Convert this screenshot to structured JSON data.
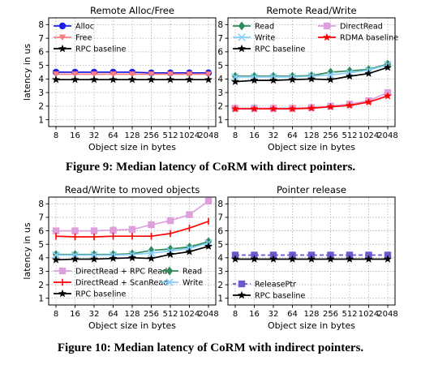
{
  "figures": [
    {
      "caption": "Figure 9: Median latency of CoRM with direct pointers."
    },
    {
      "caption": "Figure 10: Median latency of CoRM with indirect pointers."
    }
  ],
  "chart_data": [
    {
      "type": "line",
      "title": "Remote Alloc/Free",
      "xlabel": "Object size in bytes",
      "ylabel": "latency in us",
      "x": [
        "8",
        "16",
        "32",
        "64",
        "128",
        "256",
        "512",
        "1024",
        "2048"
      ],
      "ylim": [
        0.5,
        8.5
      ],
      "yticks": [
        1,
        2,
        3,
        4,
        5,
        6,
        7,
        8
      ],
      "grid": true,
      "legend": "top-left",
      "series": [
        {
          "name": "Alloc",
          "color": "#1f1fe8",
          "marker": "circle",
          "values": [
            4.5,
            4.5,
            4.5,
            4.5,
            4.5,
            4.45,
            4.45,
            4.45,
            4.45
          ]
        },
        {
          "name": "Free",
          "color": "#ff7f7f",
          "marker": "triangle-down",
          "values": [
            4.35,
            4.35,
            4.35,
            4.35,
            4.35,
            4.35,
            4.35,
            4.35,
            4.35
          ]
        },
        {
          "name": "RPC baseline",
          "color": "#000000",
          "marker": "star",
          "values": [
            3.95,
            3.95,
            3.95,
            3.95,
            3.95,
            3.95,
            3.95,
            3.95,
            3.95
          ]
        }
      ]
    },
    {
      "type": "line",
      "title": "Remote Read/Write",
      "xlabel": "Object size in bytes",
      "ylabel": "",
      "x": [
        "8",
        "16",
        "32",
        "64",
        "128",
        "256",
        "512",
        "1024",
        "2048"
      ],
      "ylim": [
        0.5,
        8.5
      ],
      "yticks": [
        1,
        2,
        3,
        4,
        5,
        6,
        7,
        8
      ],
      "grid": true,
      "legend": "top",
      "series": [
        {
          "name": "Read",
          "color": "#2e8b57",
          "marker": "diamond",
          "values": [
            4.2,
            4.2,
            4.2,
            4.2,
            4.25,
            4.5,
            4.6,
            4.7,
            5.1
          ]
        },
        {
          "name": "DirectRead",
          "color": "#dda0dd",
          "marker": "square",
          "values": [
            1.85,
            1.85,
            1.85,
            1.85,
            1.9,
            2.0,
            2.15,
            2.4,
            3.0
          ]
        },
        {
          "name": "Write",
          "color": "#87cefa",
          "marker": "x",
          "values": [
            4.15,
            4.15,
            4.15,
            4.15,
            4.2,
            4.3,
            4.45,
            4.65,
            5.05
          ]
        },
        {
          "name": "RDMA baseline",
          "color": "#ff0000",
          "marker": "star",
          "values": [
            1.8,
            1.8,
            1.8,
            1.8,
            1.85,
            1.95,
            2.05,
            2.3,
            2.75
          ]
        },
        {
          "name": "RPC baseline",
          "color": "#000000",
          "marker": "star",
          "values": [
            3.8,
            3.9,
            3.9,
            3.95,
            4.0,
            3.95,
            4.2,
            4.4,
            4.85
          ]
        }
      ]
    },
    {
      "type": "line",
      "title": "Read/Write to moved objects",
      "xlabel": "Object size in bytes",
      "ylabel": "latency in us",
      "x": [
        "8",
        "16",
        "32",
        "64",
        "128",
        "256",
        "512",
        "1024",
        "2048"
      ],
      "ylim": [
        0.5,
        8.5
      ],
      "yticks": [
        1,
        2,
        3,
        4,
        5,
        6,
        7,
        8
      ],
      "grid": true,
      "legend": "bottom",
      "series": [
        {
          "name": "DirectRead + RPC Read",
          "color": "#dda0dd",
          "marker": "square",
          "values": [
            6.0,
            6.0,
            6.0,
            6.05,
            6.1,
            6.45,
            6.75,
            7.2,
            8.2
          ]
        },
        {
          "name": "Read",
          "color": "#2e8b57",
          "marker": "diamond",
          "values": [
            4.25,
            4.25,
            4.25,
            4.25,
            4.3,
            4.55,
            4.65,
            4.8,
            5.2
          ]
        },
        {
          "name": "DirectRead + ScanRead",
          "color": "#ff0000",
          "marker": "tick",
          "values": [
            5.6,
            5.55,
            5.55,
            5.6,
            5.6,
            5.6,
            5.8,
            6.2,
            6.7
          ]
        },
        {
          "name": "Write",
          "color": "#87cefa",
          "marker": "x",
          "values": [
            4.2,
            4.2,
            4.2,
            4.2,
            4.25,
            4.35,
            4.5,
            4.7,
            5.1
          ]
        },
        {
          "name": "RPC baseline",
          "color": "#000000",
          "marker": "star",
          "values": [
            3.85,
            3.9,
            3.9,
            3.95,
            4.0,
            3.95,
            4.25,
            4.45,
            4.85
          ]
        }
      ]
    },
    {
      "type": "line",
      "title": "Pointer release",
      "xlabel": "Object size in bytes",
      "ylabel": "",
      "x": [
        "8",
        "16",
        "32",
        "64",
        "128",
        "256",
        "512",
        "1024",
        "2048"
      ],
      "ylim": [
        0.5,
        8.5
      ],
      "yticks": [
        1,
        2,
        3,
        4,
        5,
        6,
        7,
        8
      ],
      "grid": true,
      "legend": "bottom-left",
      "series": [
        {
          "name": "ReleasePtr",
          "color": "#6a5acd",
          "marker": "square",
          "dashed": true,
          "values": [
            4.2,
            4.2,
            4.2,
            4.2,
            4.2,
            4.2,
            4.2,
            4.2,
            4.2
          ]
        },
        {
          "name": "RPC baseline",
          "color": "#000000",
          "marker": "star",
          "values": [
            3.9,
            3.9,
            3.9,
            3.9,
            3.9,
            3.9,
            3.9,
            3.9,
            3.9
          ]
        }
      ]
    }
  ]
}
